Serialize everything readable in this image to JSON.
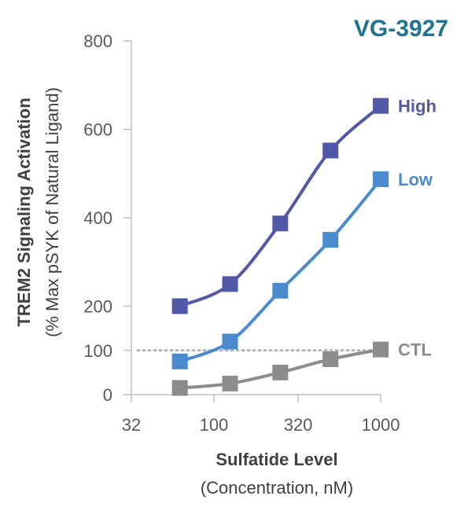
{
  "chart_data": {
    "type": "line",
    "title": "VG-3927",
    "title_color": "#1f7391",
    "ylabel": "TREM2 Signaling Activation",
    "ylabel_sub": "(% Max pSYK of Natural Ligand)",
    "xlabel": "Sulfatide Level",
    "xlabel_sub": "(Concentration, nM)",
    "x_scale": "log",
    "xlim": [
      32,
      1000
    ],
    "ylim": [
      0,
      800
    ],
    "x_ticks": [
      32,
      100,
      320,
      1000
    ],
    "x_tick_labels": [
      "32",
      "100",
      "320",
      "1000"
    ],
    "y_ticks": [
      0,
      100,
      200,
      400,
      600,
      800
    ],
    "y_tick_labels": [
      "0",
      "100",
      "200",
      "400",
      "600",
      "800"
    ],
    "grid": false,
    "reference_line": {
      "y": 100,
      "style": "dotted",
      "color": "#b3b3b3"
    },
    "x": [
      62.5,
      125,
      250,
      500,
      1000
    ],
    "series": [
      {
        "name": "High",
        "color": "#5058a8",
        "values": [
          200,
          250,
          387,
          552,
          653
        ]
      },
      {
        "name": "Low",
        "color": "#4a8bd0",
        "values": [
          75,
          120,
          235,
          350,
          487
        ]
      },
      {
        "name": "CTL",
        "color": "#8c8c8c",
        "values": [
          15,
          25,
          50,
          80,
          102
        ]
      }
    ]
  }
}
